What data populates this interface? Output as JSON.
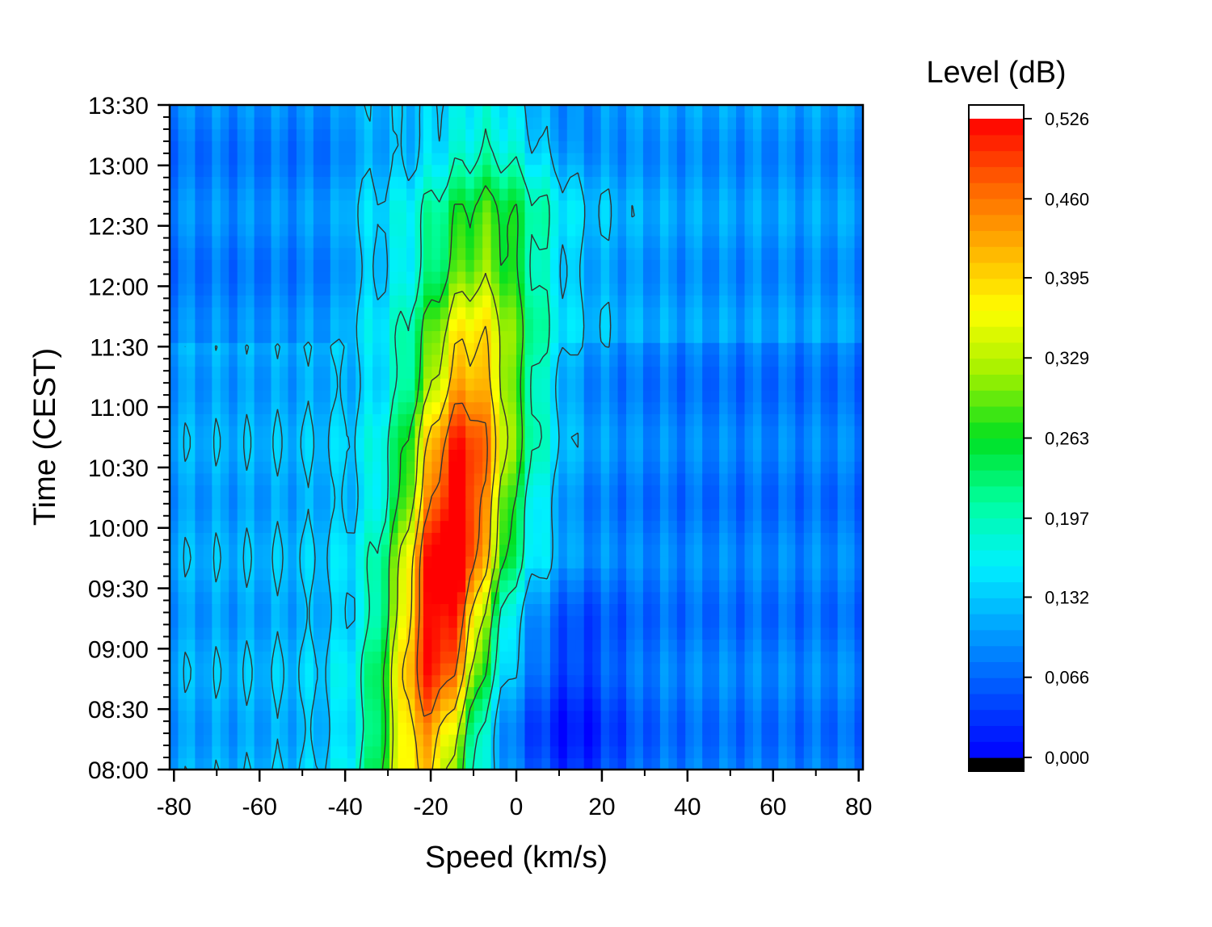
{
  "chart_data": {
    "type": "heatmap",
    "subtype": "filled-contour",
    "xlabel": "Speed (km/s)",
    "ylabel": "Time (CEST)",
    "xlim": [
      -81,
      81
    ],
    "x_ticks": [
      -80,
      -60,
      -40,
      -20,
      0,
      20,
      40,
      60,
      80
    ],
    "x_tick_labels": [
      "-80",
      "-60",
      "-40",
      "-20",
      "0",
      "20",
      "40",
      "60",
      "80"
    ],
    "x_minor_step": 10,
    "ylim": [
      "08:00",
      "13:30"
    ],
    "y_ticks": [
      "08:00",
      "08:30",
      "09:00",
      "09:30",
      "10:00",
      "10:30",
      "11:00",
      "11:30",
      "12:00",
      "12:30",
      "13:00",
      "13:30"
    ],
    "y_minor_step_minutes": 6,
    "grid": false,
    "colorbar": {
      "title": "Level (dB)",
      "ticks": [
        "0,000",
        "0,066",
        "0,132",
        "0,197",
        "0,263",
        "0,329",
        "0,395",
        "0,460",
        "0,526"
      ],
      "tick_values": [
        0.0,
        0.066,
        0.132,
        0.197,
        0.263,
        0.329,
        0.395,
        0.46,
        0.526
      ],
      "range": [
        0.0,
        0.526
      ],
      "below_color": "#000000",
      "above_color": "#ffffff",
      "colormap": [
        "#0000ff",
        "#0050ff",
        "#00a0ff",
        "#00f0ff",
        "#00ffa0",
        "#00e020",
        "#a0f000",
        "#ffff00",
        "#ffb000",
        "#ff6000",
        "#ff0000"
      ],
      "placement": "right"
    },
    "contour_levels": [
      0.132,
      0.197,
      0.263,
      0.329,
      0.395,
      0.46
    ],
    "features": [
      {
        "description": "main peak",
        "x_center": -13,
        "time_center": "09:45",
        "value": 0.48
      },
      {
        "description": "low region",
        "x_center": 8,
        "time_center": "08:20",
        "value": 0.04
      },
      {
        "description": "background",
        "value": 0.11
      }
    ]
  }
}
